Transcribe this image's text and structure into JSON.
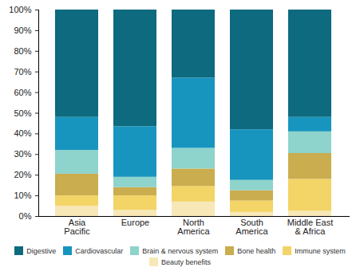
{
  "chart_data": {
    "type": "bar",
    "stacked": true,
    "grid": false,
    "legend": "bottom",
    "categories": [
      "Asia\nPacific",
      "Europe",
      "North\nAmerica",
      "South\nAmerica",
      "Middle East\n& Africa"
    ],
    "ylim": [
      0,
      100
    ],
    "yticks": [
      {
        "value": 0,
        "label": "0%"
      },
      {
        "value": 10,
        "label": "10%"
      },
      {
        "value": 20,
        "label": "20%"
      },
      {
        "value": 30,
        "label": "30%"
      },
      {
        "value": 40,
        "label": "40%"
      },
      {
        "value": 50,
        "label": "50%"
      },
      {
        "value": 60,
        "label": "60%"
      },
      {
        "value": 70,
        "label": "70%"
      },
      {
        "value": 80,
        "label": "80%"
      },
      {
        "value": 90,
        "label": "90%"
      },
      {
        "value": 100,
        "label": "100%"
      }
    ],
    "series": [
      {
        "name": "Digestive",
        "color": "#0d6a7f",
        "values": [
          52,
          56.5,
          33,
          58,
          52
        ]
      },
      {
        "name": "Cardiovascular",
        "color": "#1795bf",
        "values": [
          16,
          24.5,
          34,
          24.5,
          7
        ]
      },
      {
        "name": "Brain & nervous system",
        "color": "#8ed3cc",
        "values": [
          11.5,
          5,
          10,
          5,
          10.5
        ]
      },
      {
        "name": "Bone health",
        "color": "#c9ad4e",
        "values": [
          10.5,
          4,
          8.5,
          5,
          12.5
        ]
      },
      {
        "name": "Immune system",
        "color": "#f3d466",
        "values": [
          5,
          7,
          7.5,
          5.5,
          15.5
        ]
      },
      {
        "name": "Beauty benefits",
        "color": "#f8e8b8",
        "values": [
          5,
          3,
          7,
          2,
          2.5
        ]
      }
    ]
  }
}
